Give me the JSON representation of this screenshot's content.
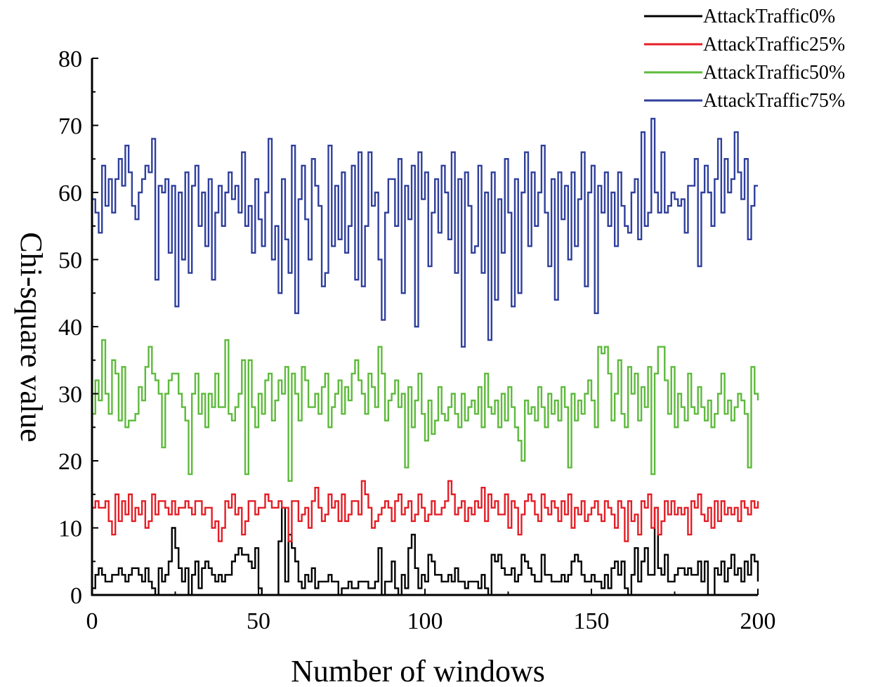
{
  "chart_data": {
    "type": "line",
    "title": "",
    "xlabel": "Number of windows",
    "ylabel": "Chi-square value",
    "xlim": [
      0,
      200
    ],
    "ylim": [
      0,
      80
    ],
    "xticks": [
      0,
      50,
      100,
      150,
      200
    ],
    "yticks": [
      0,
      10,
      20,
      30,
      40,
      50,
      60,
      70,
      80
    ],
    "grid": false,
    "legend_position": "top-right",
    "series": [
      {
        "name": "AttackTraffic0%",
        "color": "#000000",
        "values": [
          1,
          3,
          4,
          3,
          2,
          2,
          3,
          3,
          4,
          3,
          2,
          3,
          4,
          4,
          3,
          2,
          4,
          2,
          1,
          0,
          4,
          2,
          3,
          5,
          10,
          7,
          4,
          2,
          4,
          0,
          3,
          5,
          1,
          4,
          5,
          4,
          3,
          2,
          3,
          2,
          3,
          3,
          5,
          6,
          7,
          6,
          6,
          5,
          4,
          7,
          1,
          0,
          0,
          0,
          0,
          0,
          8,
          13,
          2,
          9,
          7,
          5,
          2,
          1,
          3,
          2,
          4,
          1,
          2,
          2,
          2,
          3,
          2,
          2,
          0,
          1,
          1,
          2,
          1,
          1,
          2,
          2,
          2,
          1,
          1,
          2,
          7,
          0,
          2,
          2,
          5,
          1,
          0,
          3,
          1,
          7,
          9,
          4,
          1,
          3,
          2,
          6,
          5,
          3,
          3,
          2,
          2,
          3,
          2,
          4,
          2,
          2,
          1,
          2,
          2,
          2,
          1,
          3,
          1,
          0,
          6,
          5,
          6,
          4,
          3,
          3,
          4,
          2,
          3,
          6,
          5,
          4,
          3,
          2,
          2,
          6,
          3,
          3,
          2,
          2,
          2,
          3,
          2,
          3,
          5,
          6,
          5,
          3,
          2,
          2,
          3,
          2,
          2,
          1,
          3,
          1,
          4,
          5,
          3,
          5,
          1,
          0,
          3,
          7,
          2,
          5,
          7,
          3,
          3,
          13,
          4,
          3,
          6,
          2,
          2,
          3,
          4,
          4,
          3,
          4,
          3,
          3,
          5,
          2,
          5,
          0,
          0,
          4,
          3,
          5,
          2,
          4,
          6,
          3,
          4,
          2,
          5,
          3,
          6,
          5,
          2
        ]
      },
      {
        "name": "AttackTraffic25%",
        "color": "#e41e26",
        "values": [
          13,
          14,
          13,
          13,
          14,
          11,
          9,
          15,
          11,
          14,
          12,
          15,
          11,
          13,
          12,
          14,
          10,
          11,
          15,
          12,
          14,
          14,
          13,
          12,
          14,
          12,
          13,
          13,
          14,
          13,
          12,
          14,
          14,
          12,
          13,
          13,
          10,
          11,
          8,
          10,
          14,
          13,
          15,
          12,
          13,
          9,
          11,
          14,
          14,
          12,
          13,
          13,
          15,
          14,
          13,
          13,
          14,
          13,
          13,
          8,
          14,
          14,
          11,
          12,
          13,
          10,
          14,
          16,
          13,
          11,
          12,
          15,
          13,
          14,
          11,
          15,
          11,
          12,
          14,
          14,
          12,
          17,
          15,
          13,
          10,
          11,
          12,
          13,
          14,
          13,
          11,
          14,
          15,
          12,
          13,
          14,
          11,
          12,
          15,
          13,
          11,
          12,
          14,
          12,
          12,
          13,
          14,
          17,
          15,
          12,
          13,
          14,
          11,
          13,
          12,
          14,
          13,
          16,
          11,
          15,
          13,
          14,
          12,
          12,
          15,
          10,
          14,
          13,
          9,
          12,
          14,
          15,
          14,
          12,
          11,
          15,
          13,
          12,
          14,
          13,
          11,
          14,
          12,
          15,
          10,
          13,
          12,
          14,
          11,
          12,
          13,
          14,
          12,
          11,
          14,
          13,
          12,
          10,
          14,
          13,
          8,
          14,
          11,
          12,
          9,
          14,
          13,
          15,
          10,
          13,
          9,
          11,
          14,
          12,
          14,
          12,
          13,
          12,
          13,
          9,
          14,
          13,
          15,
          12,
          11,
          13,
          10,
          14,
          11,
          14,
          12,
          13,
          12,
          13,
          11,
          14,
          13,
          12,
          14,
          13,
          14
        ]
      },
      {
        "name": "AttackTraffic50%",
        "color": "#5dba3b",
        "values": [
          27,
          32,
          29,
          38,
          30,
          27,
          35,
          33,
          26,
          34,
          25,
          26,
          26,
          27,
          31,
          29,
          34,
          37,
          33,
          32,
          30,
          22,
          30,
          32,
          33,
          33,
          30,
          28,
          26,
          18,
          30,
          33,
          27,
          30,
          25,
          30,
          28,
          33,
          28,
          28,
          38,
          27,
          26,
          28,
          30,
          35,
          18,
          35,
          28,
          25,
          30,
          27,
          32,
          33,
          26,
          29,
          32,
          30,
          34,
          17,
          33,
          30,
          26,
          34,
          32,
          28,
          28,
          30,
          27,
          31,
          33,
          25,
          28,
          30,
          32,
          27,
          31,
          29,
          33,
          35,
          32,
          30,
          27,
          33,
          31,
          28,
          37,
          33,
          26,
          29,
          30,
          32,
          28,
          30,
          19,
          31,
          25,
          29,
          33,
          27,
          23,
          29,
          24,
          26,
          31,
          27,
          26,
          28,
          30,
          27,
          25,
          30,
          26,
          28,
          29,
          27,
          31,
          25,
          33,
          28,
          27,
          29,
          25,
          30,
          26,
          31,
          28,
          25,
          23,
          20,
          29,
          27,
          28,
          26,
          31,
          28,
          25,
          30,
          27,
          29,
          26,
          31,
          28,
          19,
          30,
          26,
          29,
          27,
          30,
          32,
          29,
          25,
          37,
          36,
          37,
          33,
          26,
          30,
          35,
          27,
          25,
          34,
          30,
          33,
          26,
          31,
          28,
          34,
          18,
          33,
          37,
          37,
          32,
          27,
          34,
          25,
          30,
          28,
          26,
          33,
          28,
          27,
          31,
          28,
          26,
          29,
          25,
          27,
          30,
          33,
          27,
          29,
          26,
          28,
          30,
          29,
          27,
          19,
          34,
          30,
          29
        ]
      },
      {
        "name": "AttackTraffic75%",
        "color": "#2f3f9c",
        "values": [
          59,
          57,
          54,
          64,
          58,
          62,
          57,
          62,
          65,
          61,
          67,
          63,
          58,
          56,
          60,
          62,
          64,
          63,
          68,
          47,
          61,
          60,
          62,
          51,
          61,
          43,
          60,
          50,
          63,
          48,
          61,
          64,
          55,
          60,
          52,
          62,
          47,
          57,
          61,
          55,
          60,
          63,
          59,
          61,
          57,
          66,
          55,
          58,
          51,
          62,
          56,
          52,
          60,
          68,
          50,
          55,
          45,
          62,
          53,
          48,
          67,
          42,
          59,
          64,
          56,
          50,
          65,
          61,
          58,
          46,
          48,
          67,
          52,
          61,
          53,
          63,
          51,
          55,
          64,
          47,
          66,
          46,
          55,
          66,
          58,
          60,
          50,
          41,
          57,
          62,
          62,
          55,
          65,
          45,
          61,
          56,
          64,
          40,
          66,
          59,
          63,
          49,
          57,
          62,
          54,
          64,
          60,
          53,
          66,
          48,
          62,
          37,
          63,
          58,
          51,
          52,
          64,
          48,
          60,
          38,
          63,
          44,
          59,
          51,
          65,
          57,
          43,
          62,
          45,
          60,
          66,
          52,
          63,
          55,
          60,
          67,
          57,
          49,
          62,
          44,
          63,
          56,
          61,
          50,
          63,
          52,
          59,
          66,
          46,
          60,
          64,
          42,
          61,
          57,
          63,
          55,
          60,
          52,
          63,
          58,
          55,
          54,
          60,
          62,
          53,
          69,
          55,
          57,
          71,
          60,
          57,
          66,
          57,
          58,
          60,
          59,
          58,
          59,
          54,
          61,
          61,
          65,
          49,
          60,
          64,
          60,
          55,
          62,
          68,
          57,
          65,
          60,
          62,
          69,
          63,
          59,
          65,
          53,
          58,
          61,
          61
        ]
      }
    ]
  }
}
